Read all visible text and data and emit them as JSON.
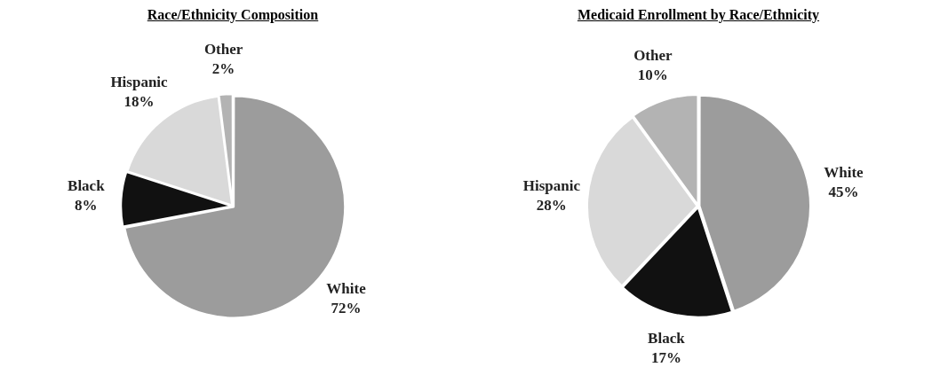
{
  "chart_data": [
    {
      "type": "pie",
      "title": "Race/Ethnicity Composition",
      "categories": [
        "White",
        "Black",
        "Hispanic",
        "Other"
      ],
      "values": [
        72,
        8,
        18,
        2
      ],
      "colors": [
        "#9c9c9c",
        "#111111",
        "#d9d9d9",
        "#b3b3b3"
      ],
      "value_labels": [
        "72%",
        "8%",
        "18%",
        "2%"
      ],
      "legend": false
    },
    {
      "type": "pie",
      "title": "Medicaid Enrollment by Race/Ethnicity",
      "categories": [
        "White",
        "Black",
        "Hispanic",
        "Other"
      ],
      "values": [
        45,
        17,
        28,
        10
      ],
      "colors": [
        "#9c9c9c",
        "#111111",
        "#d9d9d9",
        "#b3b3b3"
      ],
      "value_labels": [
        "45%",
        "17%",
        "28%",
        "10%"
      ],
      "legend": false
    }
  ]
}
